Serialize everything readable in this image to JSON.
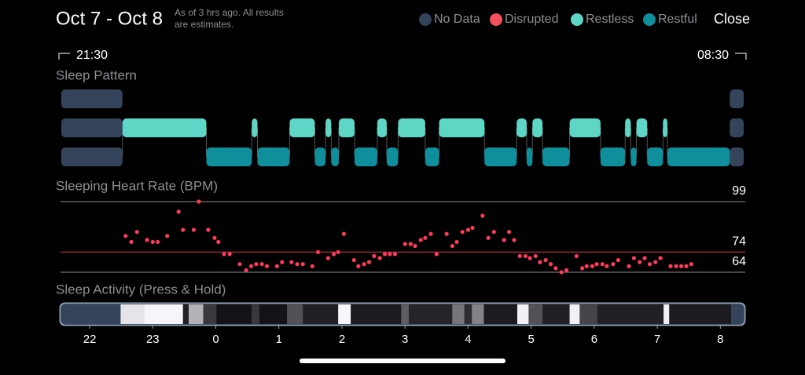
{
  "header": {
    "title": "Oct 7 - Oct 8",
    "note": [
      "As of 3 hrs ago. All results",
      "are estimates."
    ],
    "close": "Close"
  },
  "time_range": {
    "start": "21:30",
    "end": "08:30"
  },
  "chart_data": [
    {
      "type": "timeline",
      "title": "Sleep Pattern",
      "xlim": [
        21.55,
        32.37
      ],
      "series": [
        {
          "name": "No Data",
          "color": "#34445a",
          "values": [
            [
              21.55,
              22.52
            ],
            [
              32.15,
              32.37
            ]
          ]
        },
        {
          "name": "Disrupted",
          "color": "#f2505e",
          "values": []
        },
        {
          "name": "Restless",
          "color": "#5ed6c6",
          "values": [
            [
              22.52,
              23.85
            ],
            [
              24.57,
              24.66
            ],
            [
              25.17,
              25.57
            ],
            [
              25.74,
              25.83
            ],
            [
              25.95,
              26.2
            ],
            [
              26.56,
              26.71
            ],
            [
              26.89,
              27.32
            ],
            [
              27.54,
              28.26
            ],
            [
              28.77,
              28.93
            ],
            [
              29.02,
              29.18
            ],
            [
              29.61,
              30.1
            ],
            [
              30.49,
              30.58
            ],
            [
              30.67,
              30.84
            ],
            [
              31.09,
              31.16
            ]
          ]
        },
        {
          "name": "Restful",
          "color": "#0f8e9c",
          "values": [
            [
              23.85,
              24.57
            ],
            [
              24.66,
              25.17
            ],
            [
              25.57,
              25.74
            ],
            [
              25.83,
              25.95
            ],
            [
              26.2,
              26.56
            ],
            [
              26.71,
              26.89
            ],
            [
              27.32,
              27.54
            ],
            [
              28.26,
              28.77
            ],
            [
              28.93,
              29.02
            ],
            [
              29.18,
              29.61
            ],
            [
              30.1,
              30.49
            ],
            [
              30.58,
              30.67
            ],
            [
              30.84,
              31.09
            ],
            [
              31.16,
              32.15
            ]
          ]
        }
      ]
    },
    {
      "type": "scatter",
      "title": "Sleeping Heart Rate (BPM)",
      "color": "#ff3b5c",
      "xlim": [
        21.55,
        32.37
      ],
      "ylim": [
        64,
        99
      ],
      "yticks": [
        64,
        74,
        99
      ],
      "ytick_colors": [
        "#8e8e93",
        "#e0354f",
        "#8e8e93"
      ],
      "x": [
        22.57,
        22.66,
        22.75,
        22.91,
        23.0,
        23.08,
        23.23,
        23.41,
        23.48,
        23.65,
        23.73,
        23.88,
        23.98,
        24.04,
        24.13,
        24.22,
        24.38,
        24.48,
        24.56,
        24.64,
        24.73,
        24.81,
        24.97,
        25.05,
        25.2,
        25.29,
        25.38,
        25.53,
        25.62,
        25.78,
        25.87,
        25.94,
        26.03,
        26.19,
        26.26,
        26.35,
        26.43,
        26.51,
        26.6,
        26.68,
        26.76,
        26.84,
        27.0,
        27.09,
        27.16,
        27.25,
        27.32,
        27.41,
        27.5,
        27.66,
        27.75,
        27.82,
        27.91,
        28.0,
        28.07,
        28.23,
        28.32,
        28.41,
        28.57,
        28.65,
        28.73,
        28.82,
        28.91,
        28.98,
        29.07,
        29.14,
        29.23,
        29.31,
        29.39,
        29.48,
        29.56,
        29.72,
        29.81,
        29.88,
        29.97,
        30.04,
        30.13,
        30.2,
        30.3,
        30.38,
        30.55,
        30.63,
        30.72,
        30.8,
        30.88,
        30.97,
        31.05,
        31.21,
        31.3,
        31.38,
        31.46,
        31.54
      ],
      "y": [
        82,
        79,
        84,
        80,
        79,
        79,
        82,
        94,
        85,
        85,
        99,
        85,
        81,
        79,
        73,
        73,
        68,
        65,
        67,
        68,
        68,
        67,
        67,
        69,
        69,
        68,
        68,
        67,
        74,
        71,
        73,
        74,
        83,
        70,
        67,
        68,
        69,
        72,
        71,
        73,
        73,
        73,
        78,
        78,
        77,
        80,
        81,
        83,
        73,
        83,
        77,
        79,
        84,
        85,
        86,
        92,
        81,
        84,
        80,
        84,
        80,
        72,
        72,
        71,
        72,
        69,
        70,
        68,
        66,
        64,
        65,
        72,
        66,
        67,
        67,
        68,
        68,
        67,
        68,
        70,
        67,
        71,
        69,
        71,
        68,
        69,
        71,
        67,
        67,
        67,
        67,
        68
      ]
    },
    {
      "type": "heatmap",
      "title": "Sleep Activity (Press & Hold)",
      "xlim": [
        21.55,
        32.37
      ],
      "segments": [
        {
          "start": 22.49,
          "end": 22.86,
          "level": 90
        },
        {
          "start": 22.86,
          "end": 23.48,
          "level": 97
        },
        {
          "start": 23.48,
          "end": 23.57,
          "level": 10
        },
        {
          "start": 23.57,
          "end": 23.8,
          "level": 70
        },
        {
          "start": 23.8,
          "end": 24.01,
          "level": 20
        },
        {
          "start": 24.01,
          "end": 24.57,
          "level": 5
        },
        {
          "start": 24.57,
          "end": 24.69,
          "level": 20
        },
        {
          "start": 24.69,
          "end": 25.13,
          "level": 5
        },
        {
          "start": 25.13,
          "end": 25.38,
          "level": 30
        },
        {
          "start": 25.38,
          "end": 25.94,
          "level": 10
        },
        {
          "start": 25.94,
          "end": 26.14,
          "level": 98
        },
        {
          "start": 26.14,
          "end": 26.94,
          "level": 8
        },
        {
          "start": 26.94,
          "end": 27.06,
          "level": 35
        },
        {
          "start": 27.06,
          "end": 27.75,
          "level": 12
        },
        {
          "start": 27.75,
          "end": 27.94,
          "level": 45
        },
        {
          "start": 27.94,
          "end": 28.06,
          "level": 15
        },
        {
          "start": 28.06,
          "end": 28.25,
          "level": 50
        },
        {
          "start": 28.25,
          "end": 28.78,
          "level": 8
        },
        {
          "start": 28.78,
          "end": 28.96,
          "level": 95
        },
        {
          "start": 28.96,
          "end": 29.18,
          "level": 30
        },
        {
          "start": 29.18,
          "end": 29.61,
          "level": 10
        },
        {
          "start": 29.61,
          "end": 29.77,
          "level": 95
        },
        {
          "start": 29.77,
          "end": 30.05,
          "level": 25
        },
        {
          "start": 30.05,
          "end": 31.1,
          "level": 10
        },
        {
          "start": 31.1,
          "end": 31.19,
          "level": 95
        },
        {
          "start": 31.19,
          "end": 32.17,
          "level": 8
        }
      ],
      "xticks": [
        22,
        23,
        {
          "value": 24,
          "label": "0"
        },
        {
          "value": 25,
          "label": "1"
        },
        {
          "value": 26,
          "label": "2"
        },
        {
          "value": 27,
          "label": "3"
        },
        {
          "value": 28,
          "label": "4"
        },
        {
          "value": 29,
          "label": "5"
        },
        {
          "value": 30,
          "label": "6"
        },
        {
          "value": 31,
          "label": "7"
        },
        {
          "value": 32,
          "label": "8"
        }
      ]
    }
  ]
}
